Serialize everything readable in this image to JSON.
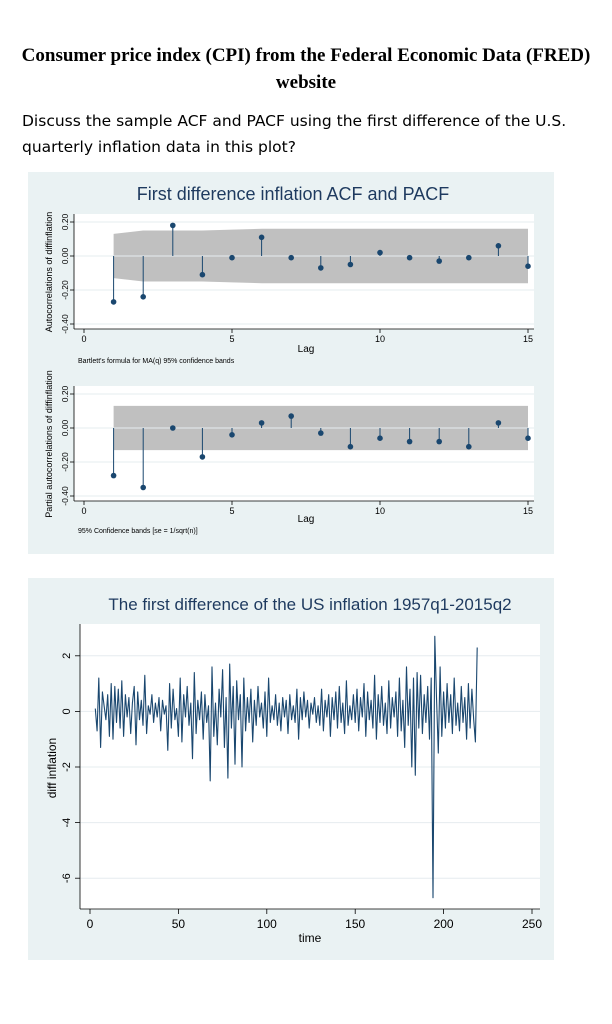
{
  "page": {
    "title": "Consumer price index (CPI) from the Federal Economic Data (FRED) website",
    "question": "Discuss the sample ACF and PACF using the first difference of the U.S. quarterly inflation data in this plot?"
  },
  "chart_data": [
    {
      "type": "scatter",
      "subtype": "stem",
      "title": "First difference inflation ACF and PACF",
      "xlabel": "Lag",
      "ylabel": "Autocorrelations of diffinflation",
      "note": "Bartlett's formula for MA(q) 95% confidence bands",
      "xlim": [
        0,
        15
      ],
      "ylim": [
        -0.4,
        0.2
      ],
      "xticks": [
        "0",
        "5",
        "10",
        "15"
      ],
      "yticks": [
        "-0.40",
        "-0.20",
        "0.00",
        "0.20"
      ],
      "x": [
        1,
        2,
        3,
        4,
        5,
        6,
        7,
        8,
        9,
        10,
        11,
        12,
        13,
        14,
        15
      ],
      "values": [
        -0.27,
        -0.24,
        0.18,
        -0.11,
        -0.01,
        0.11,
        -0.01,
        -0.07,
        -0.05,
        0.02,
        -0.01,
        -0.03,
        -0.01,
        0.06,
        -0.06
      ],
      "band_upper": [
        0.13,
        0.15,
        0.15,
        0.15,
        0.155,
        0.16,
        0.16,
        0.16,
        0.16,
        0.16,
        0.16,
        0.16,
        0.16,
        0.16,
        0.16
      ],
      "band_lower": [
        -0.13,
        -0.15,
        -0.15,
        -0.15,
        -0.155,
        -0.16,
        -0.16,
        -0.16,
        -0.16,
        -0.16,
        -0.16,
        -0.16,
        -0.16,
        -0.16,
        -0.16
      ],
      "colors": {
        "marker": "#1a476f",
        "band": "#c0c0c0",
        "panel_bg": "#eaf2f3"
      }
    },
    {
      "type": "scatter",
      "subtype": "stem",
      "xlabel": "Lag",
      "ylabel": "Partial autocorrelations of diffinflation",
      "note": "95% Confidence bands [se = 1/sqrt(n)]",
      "xlim": [
        0,
        15
      ],
      "ylim": [
        -0.4,
        0.2
      ],
      "xticks": [
        "0",
        "5",
        "10",
        "15"
      ],
      "yticks": [
        "-0.40",
        "-0.20",
        "0.00",
        "0.20"
      ],
      "x": [
        1,
        2,
        3,
        4,
        5,
        6,
        7,
        8,
        9,
        10,
        11,
        12,
        13,
        14,
        15
      ],
      "values": [
        -0.28,
        -0.35,
        0.0,
        -0.17,
        -0.04,
        0.03,
        0.07,
        -0.03,
        -0.11,
        -0.06,
        -0.08,
        -0.08,
        -0.11,
        0.03,
        -0.06
      ],
      "band": 0.13,
      "colors": {
        "marker": "#1a476f",
        "band": "#c0c0c0"
      }
    },
    {
      "type": "line",
      "title": "The first difference of the US inflation 1957q1-2015q2",
      "xlabel": "time",
      "ylabel": "diff inflation",
      "xlim": [
        0,
        250
      ],
      "ylim": [
        -7,
        3
      ],
      "xticks": [
        "0",
        "50",
        "100",
        "150",
        "200",
        "250"
      ],
      "yticks": [
        "-6",
        "-4",
        "-2",
        "0",
        "2"
      ],
      "x_start": 3,
      "values": [
        0.1,
        -0.7,
        1.2,
        -1.3,
        0.7,
        0.2,
        -0.3,
        0.6,
        -0.9,
        1.0,
        -1.0,
        0.9,
        -0.4,
        0.8,
        -0.6,
        1.1,
        -0.9,
        0.6,
        -0.2,
        0.5,
        -0.8,
        0.3,
        0.9,
        -1.2,
        0.7,
        -0.3,
        0.4,
        -0.5,
        1.3,
        -0.8,
        0.2,
        -0.1,
        0.6,
        -0.4,
        0.3,
        -0.2,
        0.5,
        -0.7,
        0.4,
        -0.1,
        0.2,
        -1.4,
        1.0,
        -0.6,
        0.8,
        -0.3,
        0.1,
        -0.9,
        1.2,
        -1.1,
        0.6,
        -0.2,
        0.9,
        -0.5,
        0.3,
        -1.7,
        1.4,
        -0.8,
        0.4,
        -0.3,
        0.7,
        -1.0,
        0.6,
        -0.4,
        0.2,
        -2.5,
        1.6,
        -0.9,
        0.3,
        -1.2,
        0.8,
        -0.2,
        1.5,
        -1.3,
        0.5,
        -2.4,
        1.7,
        -0.6,
        0.9,
        -1.9,
        1.1,
        -0.3,
        0.6,
        -2.0,
        1.2,
        -0.7,
        0.5,
        -0.4,
        0.8,
        -1.1,
        0.4,
        -0.5,
        0.9,
        -0.2,
        0.3,
        -0.6,
        0.7,
        -0.9,
        1.2,
        -0.4,
        0.2,
        -0.3,
        0.6,
        -0.5,
        0.3,
        -0.7,
        0.5,
        -0.2,
        0.4,
        -0.8,
        0.6,
        -0.3,
        0.2,
        -0.4,
        0.8,
        -1.0,
        0.5,
        -0.3,
        0.7,
        -0.2,
        0.4,
        -0.6,
        0.3,
        -0.1,
        0.5,
        -0.4,
        0.2,
        -0.5,
        0.8,
        -0.7,
        0.4,
        -0.2,
        0.6,
        -0.9,
        0.5,
        -0.3,
        0.7,
        -0.6,
        0.9,
        -0.4,
        0.3,
        -0.8,
        1.1,
        -0.5,
        0.2,
        -0.3,
        0.6,
        -0.4,
        0.8,
        -0.7,
        0.5,
        -0.2,
        1.0,
        -0.9,
        0.7,
        -0.3,
        0.4,
        -0.6,
        1.3,
        -1.0,
        0.6,
        -0.4,
        0.9,
        -0.5,
        0.3,
        -0.8,
        1.1,
        -0.6,
        0.5,
        -0.2,
        0.7,
        -0.9,
        1.2,
        -0.7,
        0.4,
        -1.3,
        1.6,
        -0.5,
        0.8,
        -2.0,
        1.2,
        -2.3,
        1.4,
        -0.6,
        1.3,
        -0.8,
        0.6,
        -0.4,
        0.9,
        -1.0,
        1.2,
        -6.7,
        2.7,
        0.5,
        -1.5,
        1.6,
        -0.9,
        0.7,
        -0.6,
        1.0,
        -0.4,
        0.6,
        -0.8,
        1.2,
        -0.5,
        0.3,
        -0.7,
        0.9,
        -0.4,
        0.5,
        -1.0,
        1.0,
        -0.6,
        0.8,
        -0.3,
        -1.1,
        2.3
      ],
      "colors": {
        "line": "#1a476f",
        "panel_bg": "#eaf2f3"
      }
    }
  ]
}
